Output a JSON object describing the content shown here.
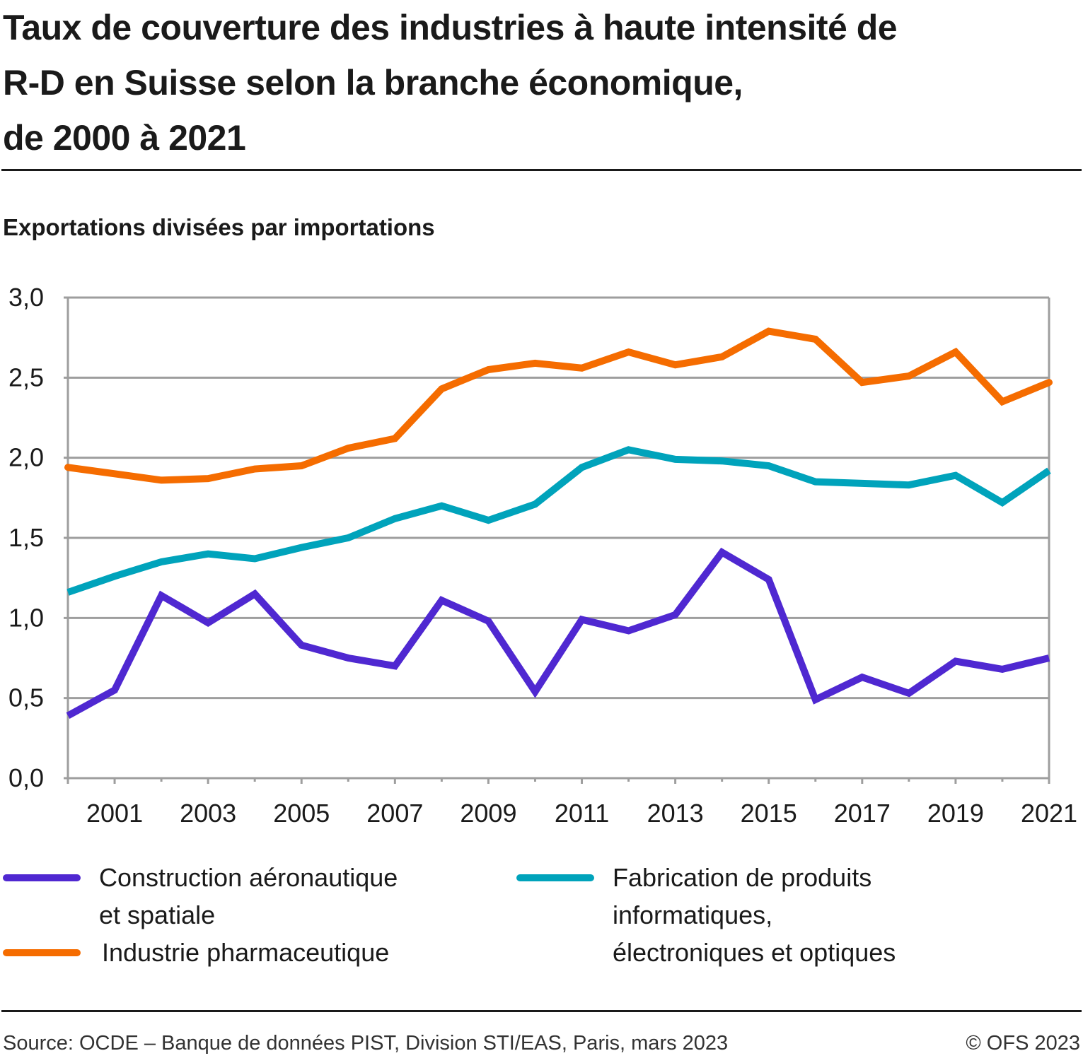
{
  "header": {
    "title": "Taux de couverture des industries à haute intensité de R-D en Suisse selon la branche économique, de 2000 à 2021",
    "title_lines": [
      "Taux de couverture des industries à haute intensité de",
      "R-D en Suisse selon la branche économique,",
      "de 2000 à 2021"
    ],
    "subtitle": "Exportations divisées par importations"
  },
  "footer": {
    "source": "Source: OCDE – Banque de données PIST, Division STI/EAS, Paris, mars 2023",
    "copyright": "© OFS 2023"
  },
  "chart_data": {
    "type": "line",
    "title": "Taux de couverture des industries à haute intensité de R-D en Suisse selon la branche économique, de 2000 à 2021",
    "xlabel": "",
    "ylabel": "Exportations divisées par importations",
    "x": [
      2000,
      2001,
      2002,
      2003,
      2004,
      2005,
      2006,
      2007,
      2008,
      2009,
      2010,
      2011,
      2012,
      2013,
      2014,
      2015,
      2016,
      2017,
      2018,
      2019,
      2020,
      2021
    ],
    "xlim": [
      2000,
      2021
    ],
    "ylim": [
      0,
      3.0
    ],
    "x_tick_labels": [
      "2001",
      "2003",
      "2005",
      "2007",
      "2009",
      "2011",
      "2013",
      "2015",
      "2017",
      "2019",
      "2021"
    ],
    "x_tick_values": [
      2001,
      2003,
      2005,
      2007,
      2009,
      2011,
      2013,
      2015,
      2017,
      2019,
      2021
    ],
    "y_ticks": [
      0,
      0.5,
      1.0,
      1.5,
      2.0,
      2.5,
      3.0
    ],
    "y_tick_labels": [
      "0,0",
      "0,5",
      "1,0",
      "1,5",
      "2,0",
      "2,5",
      "3,0"
    ],
    "grid": true,
    "legend_position": "bottom",
    "series": [
      {
        "name": "Construction aéronautique et spatiale",
        "legend_label": "Construction aéronautique\net spatiale",
        "color": "#4f28d1",
        "values": [
          0.39,
          0.55,
          1.14,
          0.97,
          1.15,
          0.83,
          0.75,
          0.7,
          1.11,
          0.98,
          0.54,
          0.99,
          0.92,
          1.02,
          1.41,
          1.24,
          0.49,
          0.63,
          0.53,
          0.73,
          0.68,
          0.75
        ]
      },
      {
        "name": "Industrie pharmaceutique",
        "legend_label": "Industrie pharmaceutique",
        "color": "#f56c00",
        "values": [
          1.94,
          1.9,
          1.86,
          1.87,
          1.93,
          1.95,
          2.06,
          2.12,
          2.43,
          2.55,
          2.59,
          2.56,
          2.66,
          2.58,
          2.63,
          2.79,
          2.74,
          2.47,
          2.51,
          2.66,
          2.35,
          2.47
        ]
      },
      {
        "name": "Fabrication de produits informatiques, électroniques et optiques",
        "legend_label": "Fabrication de produits\ninformatiques,\nélectroniques et optiques",
        "color": "#00a3bb",
        "values": [
          1.16,
          1.26,
          1.35,
          1.4,
          1.37,
          1.44,
          1.5,
          1.62,
          1.7,
          1.61,
          1.71,
          1.94,
          2.05,
          1.99,
          1.98,
          1.95,
          1.85,
          1.84,
          1.83,
          1.89,
          1.72,
          1.92
        ]
      }
    ]
  }
}
